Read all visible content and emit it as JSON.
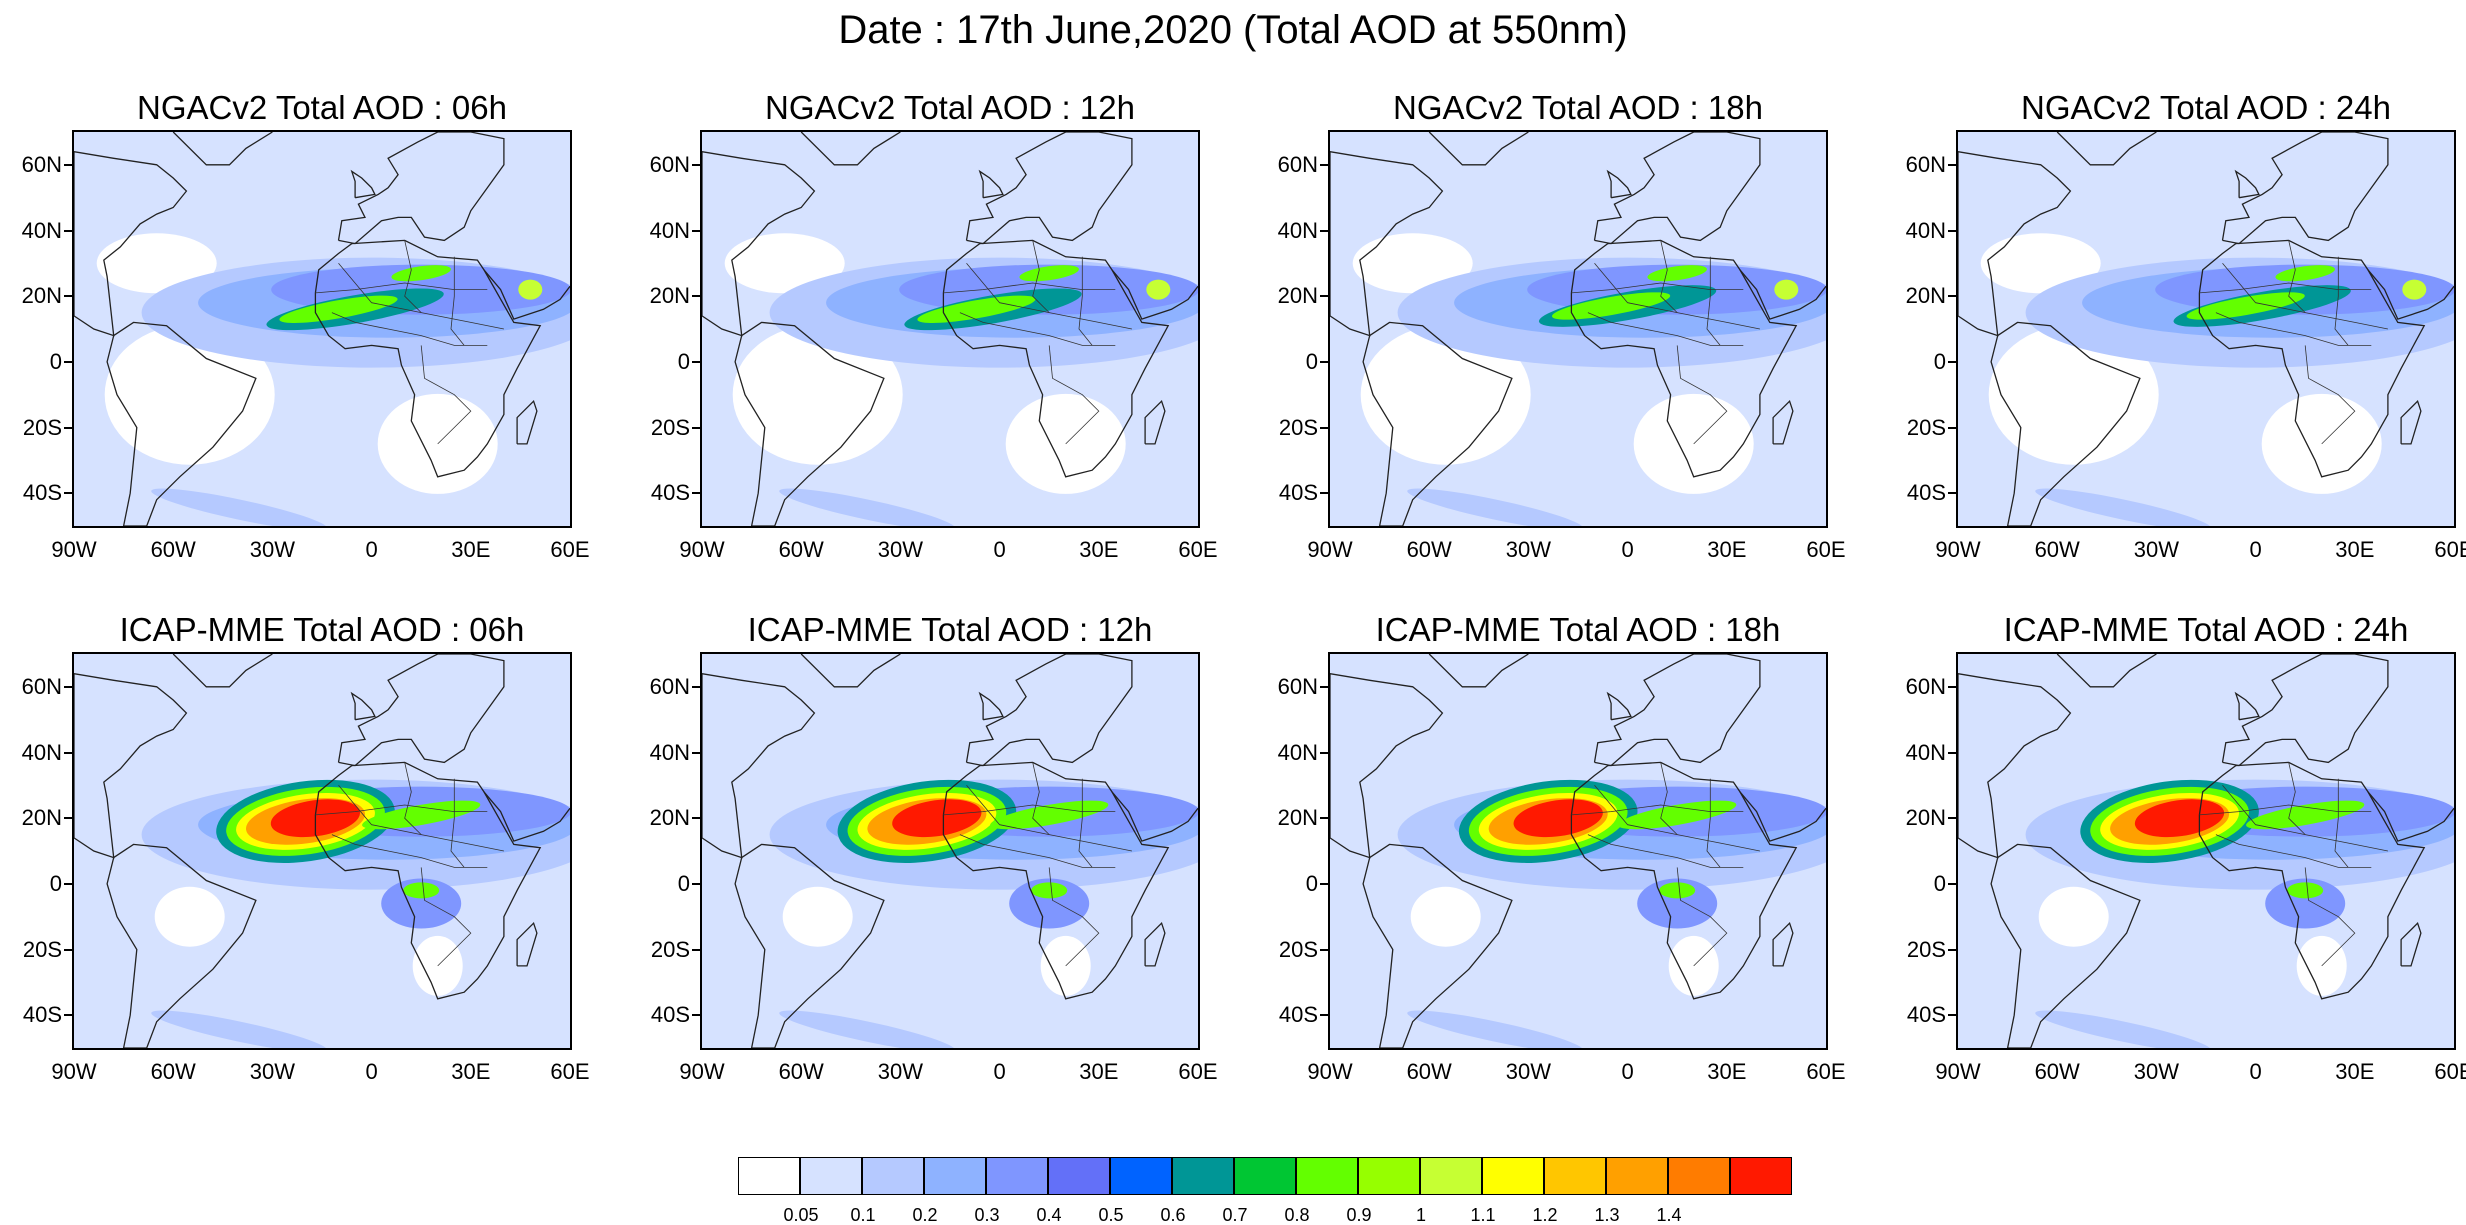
{
  "title": "Date : 17th June,2020 (Total AOD at 550nm)",
  "panels": [
    {
      "title": "NGACv2 Total AOD : 06h",
      "model": "NGACv2",
      "hour": "06h",
      "center": [
        -15,
        16
      ]
    },
    {
      "title": "NGACv2 Total AOD : 12h",
      "model": "NGACv2",
      "hour": "12h",
      "center": [
        -12,
        16
      ]
    },
    {
      "title": "NGACv2 Total AOD : 18h",
      "model": "NGACv2",
      "hour": "18h",
      "center": [
        -10,
        17
      ]
    },
    {
      "title": "NGACv2 Total AOD : 24h",
      "model": "NGACv2",
      "hour": "24h",
      "center": [
        -8,
        17
      ]
    },
    {
      "title": "ICAP-MME Total AOD : 06h",
      "model": "ICAP-MME",
      "hour": "06h",
      "center": [
        -20,
        19
      ]
    },
    {
      "title": "ICAP-MME Total AOD : 12h",
      "model": "ICAP-MME",
      "hour": "12h",
      "center": [
        -22,
        19
      ]
    },
    {
      "title": "ICAP-MME Total AOD : 18h",
      "model": "ICAP-MME",
      "hour": "18h",
      "center": [
        -24,
        19
      ]
    },
    {
      "title": "ICAP-MME Total AOD : 24h",
      "model": "ICAP-MME",
      "hour": "24h",
      "center": [
        -26,
        19
      ]
    }
  ],
  "lat_labels": [
    "60N",
    "40N",
    "20N",
    "0",
    "20S",
    "40S"
  ],
  "lon_labels": [
    "90W",
    "60W",
    "30W",
    "0",
    "30E",
    "60E"
  ],
  "colorbar": {
    "labels": [
      "0.05",
      "0.1",
      "0.2",
      "0.3",
      "0.4",
      "0.5",
      "0.6",
      "0.7",
      "0.8",
      "0.9",
      "1",
      "1.1",
      "1.2",
      "1.3",
      "1.4"
    ],
    "colors": [
      "#ffffff",
      "#d6e2ff",
      "#b5c9ff",
      "#8eb2ff",
      "#7f96ff",
      "#6370f8",
      "#0063ff",
      "#009696",
      "#00c633",
      "#63ff00",
      "#96ff00",
      "#c6ff33",
      "#ffff00",
      "#ffc600",
      "#ffa000",
      "#ff7c00",
      "#ff1900"
    ]
  }
}
